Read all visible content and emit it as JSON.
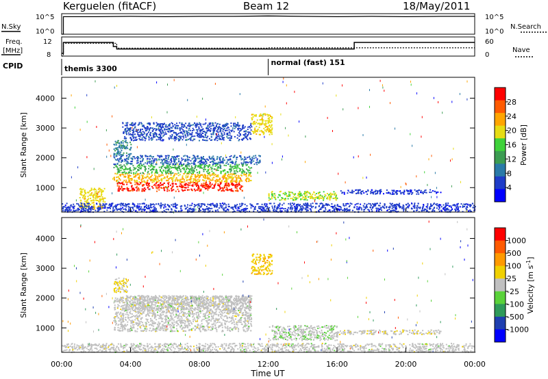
{
  "header": {
    "station": "Kerguelen (fitACF)",
    "beam": "Beam 12",
    "date": "18/May/2011"
  },
  "strip_nsky": {
    "left_label": "N.Sky",
    "right_label": "N.Search",
    "left_ticks": [
      "10^5",
      "10^0"
    ],
    "right_ticks": [
      "10^5",
      "10^0"
    ]
  },
  "strip_freq": {
    "left_label_line1": "Freq.",
    "left_label_line2": "[MHz]",
    "right_label": "Nave",
    "left_ticks": [
      "12",
      "8"
    ],
    "right_ticks": [
      "60",
      "0"
    ]
  },
  "cpid": {
    "label": "CPID",
    "segments": [
      {
        "name": "themis 3300",
        "start_hour": 0
      },
      {
        "name": "normal (fast) 151",
        "start_hour": 12
      }
    ]
  },
  "x_axis": {
    "title": "Time UT",
    "ticks": [
      "00:00",
      "04:00",
      "08:00",
      "12:00",
      "16:00",
      "20:00",
      "00:00"
    ],
    "range_hours": [
      0,
      24
    ]
  },
  "colors": {
    "power_scale": [
      "#0000ff",
      "#1e3cc8",
      "#2a7aa8",
      "#3c9c52",
      "#3fd23a",
      "#e6dc14",
      "#ffa500",
      "#ff5a00",
      "#ff0000"
    ],
    "velocity_scale": [
      "#0000ff",
      "#1f3fb0",
      "#2f9a5a",
      "#5ad23a",
      "#c0c0c0",
      "#f0d000",
      "#ff9a00",
      "#ff5a00",
      "#ff0000"
    ]
  },
  "chart_data": [
    {
      "type": "line",
      "title": "",
      "ylabel": "N.Sky",
      "series": [
        {
          "name": "N.Sky",
          "x": [
            0,
            0.1,
            0.1,
            2,
            4,
            6,
            8,
            10,
            12,
            14,
            16,
            18,
            20,
            22,
            24
          ],
          "y": [
            0,
            0,
            4.6,
            4.6,
            4.7,
            4.6,
            4.7,
            4.7,
            4.8,
            4.7,
            4.6,
            4.7,
            4.6,
            4.7,
            4.7
          ]
        }
      ],
      "xlim": [
        0,
        24
      ],
      "ylim": [
        0,
        5.4
      ],
      "log_scale": true
    },
    {
      "type": "line",
      "title": "",
      "ylabel": "Freq. [MHz]",
      "series": [
        {
          "name": "Freq.",
          "x": [
            0,
            0.1,
            0.1,
            3.0,
            3.0,
            3.2,
            3.2,
            17.0,
            17.0,
            24
          ],
          "y": [
            8,
            8,
            12,
            12,
            10.5,
            10.5,
            9.6,
            9.6,
            12,
            12
          ]
        },
        {
          "name": "Nave",
          "x": [
            0,
            0.1,
            0.1,
            3.2,
            3.2,
            12,
            12,
            24
          ],
          "y": [
            0,
            0,
            40,
            40,
            25,
            25,
            26,
            26
          ]
        }
      ],
      "xlim": [
        0,
        24
      ],
      "ylim_freq": [
        7,
        14
      ],
      "ylim_nave": [
        0,
        60
      ]
    },
    {
      "type": "heatmap",
      "title": "",
      "xlabel": "Time UT",
      "ylabel": "Slant Range [km]",
      "colorbar_label": "Power [dB]",
      "colorbar_ticks": [
        "4",
        "8",
        "12",
        "16",
        "20",
        "24",
        "28"
      ],
      "colorbar_range": [
        0,
        32
      ],
      "y_ticks": [
        "1000",
        "2000",
        "3000",
        "4000"
      ],
      "ylim": [
        180,
        4700
      ],
      "xlim": [
        0,
        24
      ],
      "regions": [
        {
          "x0": 3.2,
          "x1": 10.5,
          "y0": 900,
          "y1": 1200,
          "value": 29
        },
        {
          "x0": 3.0,
          "x1": 11.0,
          "y0": 1200,
          "y1": 1500,
          "value": 22
        },
        {
          "x0": 3.0,
          "x1": 11.0,
          "y0": 1500,
          "y1": 1800,
          "value": 14
        },
        {
          "x0": 3.0,
          "x1": 11.5,
          "y0": 1800,
          "y1": 2100,
          "value": 7
        },
        {
          "x0": 3.0,
          "x1": 4.0,
          "y0": 2100,
          "y1": 2600,
          "value": 10
        },
        {
          "x0": 3.5,
          "x1": 11.0,
          "y0": 2600,
          "y1": 3200,
          "value": 6
        },
        {
          "x0": 11.0,
          "x1": 12.2,
          "y0": 2800,
          "y1": 3500,
          "value": 20
        },
        {
          "x0": 1.0,
          "x1": 2.5,
          "y0": 300,
          "y1": 1000,
          "value": 20
        },
        {
          "x0": 0.0,
          "x1": 24.0,
          "y0": 200,
          "y1": 500,
          "value": 5
        },
        {
          "x0": 12.0,
          "x1": 16.0,
          "y0": 600,
          "y1": 900,
          "value": 18
        },
        {
          "x0": 16.0,
          "x1": 22.0,
          "y0": 800,
          "y1": 950,
          "value": 5
        }
      ]
    },
    {
      "type": "heatmap",
      "title": "",
      "xlabel": "Time UT",
      "ylabel": "Slant Range [km]",
      "colorbar_label": "Velocity [m s^-1]",
      "colorbar_ticks": [
        "1000",
        "500",
        "100",
        "25",
        "-25",
        "-100",
        "-500",
        "-1000"
      ],
      "colorbar_range": [
        -1200,
        1200
      ],
      "y_ticks": [
        "1000",
        "2000",
        "3000",
        "4000"
      ],
      "ylim": [
        180,
        4700
      ],
      "xlim": [
        0,
        24
      ],
      "regions": [
        {
          "x0": 3.0,
          "x1": 11.0,
          "y0": 900,
          "y1": 2100,
          "value": 0
        },
        {
          "x0": 3.5,
          "x1": 11.0,
          "y0": 1600,
          "y1": 2100,
          "value": 0
        },
        {
          "x0": 3.0,
          "x1": 3.8,
          "y0": 2200,
          "y1": 2700,
          "value": -150
        },
        {
          "x0": 11.0,
          "x1": 12.2,
          "y0": 2800,
          "y1": 3500,
          "value": -300
        },
        {
          "x0": 12.0,
          "x1": 16.0,
          "y0": 600,
          "y1": 1100,
          "value": 60
        },
        {
          "x0": 0.0,
          "x1": 24.0,
          "y0": 200,
          "y1": 500,
          "value": 0
        },
        {
          "x0": 16.0,
          "x1": 22.0,
          "y0": 800,
          "y1": 950,
          "value": -30
        }
      ]
    }
  ]
}
